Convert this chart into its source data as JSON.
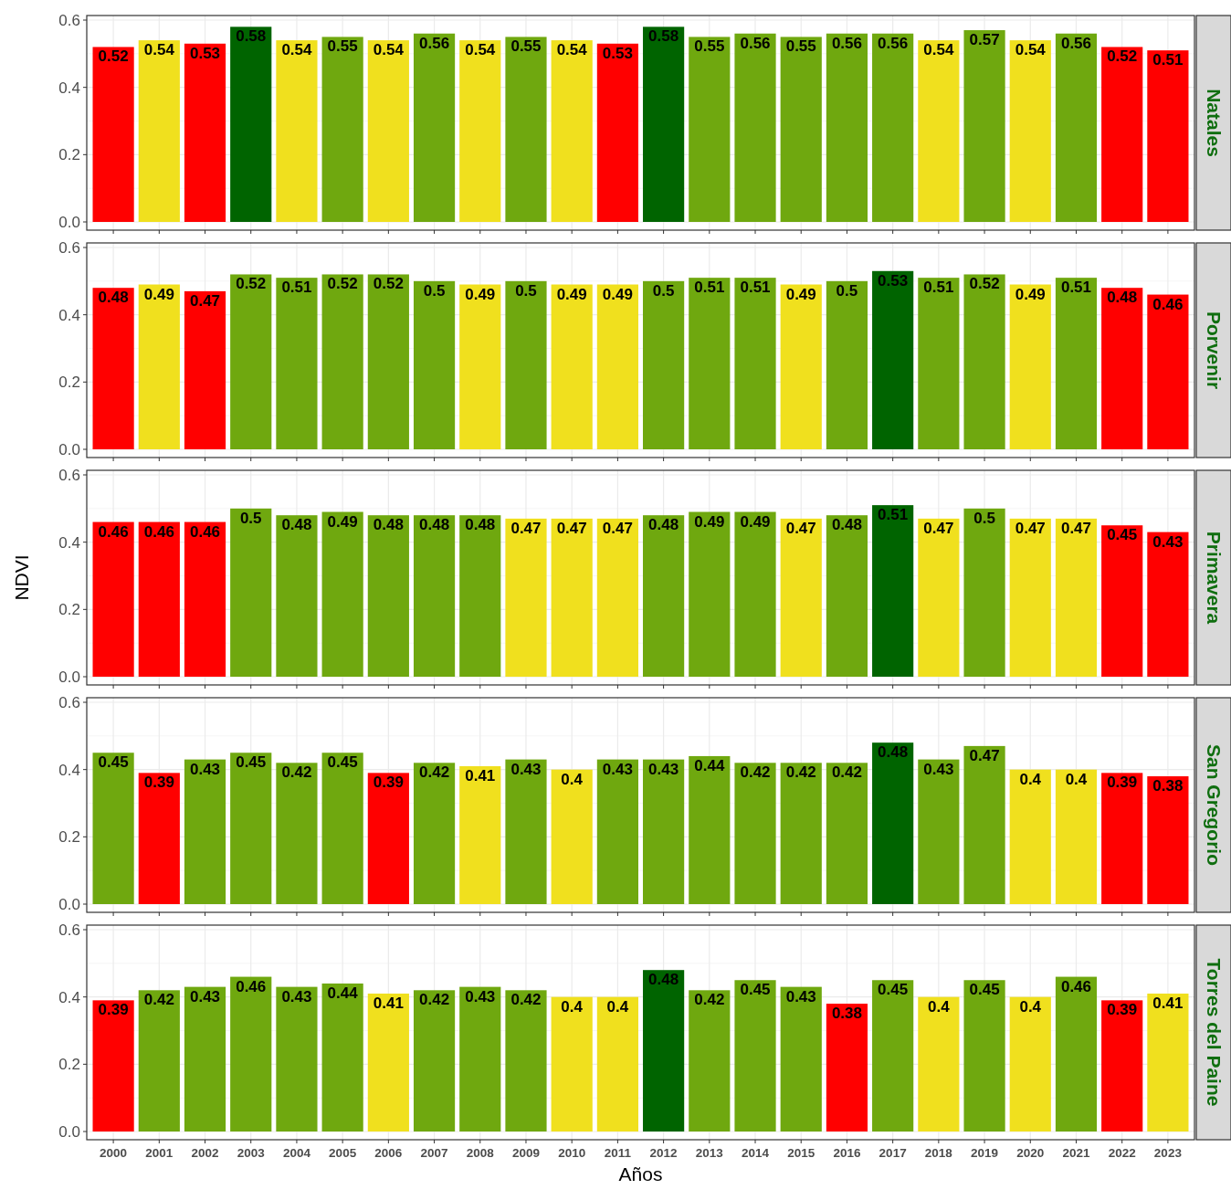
{
  "chart_data": [
    {
      "type": "bar",
      "title": "Natales",
      "categories": [
        "2000",
        "2001",
        "2002",
        "2003",
        "2004",
        "2005",
        "2006",
        "2007",
        "2008",
        "2009",
        "2010",
        "2011",
        "2012",
        "2013",
        "2014",
        "2015",
        "2016",
        "2017",
        "2018",
        "2019",
        "2020",
        "2021",
        "2022",
        "2023"
      ],
      "values": [
        0.52,
        0.54,
        0.53,
        0.58,
        0.54,
        0.55,
        0.54,
        0.56,
        0.54,
        0.55,
        0.54,
        0.53,
        0.58,
        0.55,
        0.56,
        0.55,
        0.56,
        0.56,
        0.54,
        0.57,
        0.54,
        0.56,
        0.52,
        0.51
      ],
      "colors": [
        "#ff0000",
        "#f0e01e",
        "#ff0000",
        "#006400",
        "#f0e01e",
        "#6fa80f",
        "#f0e01e",
        "#6fa80f",
        "#f0e01e",
        "#6fa80f",
        "#f0e01e",
        "#ff0000",
        "#006400",
        "#6fa80f",
        "#6fa80f",
        "#6fa80f",
        "#6fa80f",
        "#6fa80f",
        "#f0e01e",
        "#6fa80f",
        "#f0e01e",
        "#6fa80f",
        "#ff0000",
        "#ff0000"
      ],
      "ylim": [
        0,
        0.6
      ],
      "yticks": [
        {
          "value": 0,
          "label": "0.0"
        },
        {
          "value": 0.2,
          "label": "0.2"
        },
        {
          "value": 0.4,
          "label": "0.4"
        },
        {
          "value": 0.6,
          "label": "0.6"
        }
      ],
      "grid": true,
      "data_labels": true,
      "tick_labels": "y"
    },
    {
      "type": "bar",
      "title": "Porvenir",
      "categories": [
        "2000",
        "2001",
        "2002",
        "2003",
        "2004",
        "2005",
        "2006",
        "2007",
        "2008",
        "2009",
        "2010",
        "2011",
        "2012",
        "2013",
        "2014",
        "2015",
        "2016",
        "2017",
        "2018",
        "2019",
        "2020",
        "2021",
        "2022",
        "2023"
      ],
      "values": [
        0.48,
        0.49,
        0.47,
        0.52,
        0.51,
        0.52,
        0.52,
        0.5,
        0.49,
        0.5,
        0.49,
        0.49,
        0.5,
        0.51,
        0.51,
        0.49,
        0.5,
        0.53,
        0.51,
        0.52,
        0.49,
        0.51,
        0.48,
        0.46
      ],
      "colors": [
        "#ff0000",
        "#f0e01e",
        "#ff0000",
        "#6fa80f",
        "#6fa80f",
        "#6fa80f",
        "#6fa80f",
        "#6fa80f",
        "#f0e01e",
        "#6fa80f",
        "#f0e01e",
        "#f0e01e",
        "#6fa80f",
        "#6fa80f",
        "#6fa80f",
        "#f0e01e",
        "#6fa80f",
        "#006400",
        "#6fa80f",
        "#6fa80f",
        "#f0e01e",
        "#6fa80f",
        "#ff0000",
        "#ff0000"
      ],
      "ylim": [
        0,
        0.6
      ],
      "yticks": [
        {
          "value": 0,
          "label": "0.0"
        },
        {
          "value": 0.2,
          "label": "0.2"
        },
        {
          "value": 0.4,
          "label": "0.4"
        },
        {
          "value": 0.6,
          "label": "0.6"
        }
      ],
      "grid": true,
      "data_labels": true,
      "tick_labels": "y"
    },
    {
      "type": "bar",
      "title": "Primavera",
      "ylabel": "NDVI",
      "categories": [
        "2000",
        "2001",
        "2002",
        "2003",
        "2004",
        "2005",
        "2006",
        "2007",
        "2008",
        "2009",
        "2010",
        "2011",
        "2012",
        "2013",
        "2014",
        "2015",
        "2016",
        "2017",
        "2018",
        "2019",
        "2020",
        "2021",
        "2022",
        "2023"
      ],
      "values": [
        0.46,
        0.46,
        0.46,
        0.5,
        0.48,
        0.49,
        0.48,
        0.48,
        0.48,
        0.47,
        0.47,
        0.47,
        0.48,
        0.49,
        0.49,
        0.47,
        0.48,
        0.51,
        0.47,
        0.5,
        0.47,
        0.47,
        0.45,
        0.43
      ],
      "colors": [
        "#ff0000",
        "#ff0000",
        "#ff0000",
        "#6fa80f",
        "#6fa80f",
        "#6fa80f",
        "#6fa80f",
        "#6fa80f",
        "#6fa80f",
        "#f0e01e",
        "#f0e01e",
        "#f0e01e",
        "#6fa80f",
        "#6fa80f",
        "#6fa80f",
        "#f0e01e",
        "#6fa80f",
        "#006400",
        "#f0e01e",
        "#6fa80f",
        "#f0e01e",
        "#f0e01e",
        "#ff0000",
        "#ff0000"
      ],
      "ylim": [
        0,
        0.6
      ],
      "yticks": [
        {
          "value": 0,
          "label": "0.0"
        },
        {
          "value": 0.2,
          "label": "0.2"
        },
        {
          "value": 0.4,
          "label": "0.4"
        },
        {
          "value": 0.6,
          "label": "0.6"
        }
      ],
      "grid": true,
      "data_labels": true,
      "tick_labels": "y"
    },
    {
      "type": "bar",
      "title": "San Gregorio",
      "categories": [
        "2000",
        "2001",
        "2002",
        "2003",
        "2004",
        "2005",
        "2006",
        "2007",
        "2008",
        "2009",
        "2010",
        "2011",
        "2012",
        "2013",
        "2014",
        "2015",
        "2016",
        "2017",
        "2018",
        "2019",
        "2020",
        "2021",
        "2022",
        "2023"
      ],
      "values": [
        0.45,
        0.39,
        0.43,
        0.45,
        0.42,
        0.45,
        0.39,
        0.42,
        0.41,
        0.43,
        0.4,
        0.43,
        0.43,
        0.44,
        0.42,
        0.42,
        0.42,
        0.48,
        0.43,
        0.47,
        0.4,
        0.4,
        0.39,
        0.38
      ],
      "colors": [
        "#6fa80f",
        "#ff0000",
        "#6fa80f",
        "#6fa80f",
        "#6fa80f",
        "#6fa80f",
        "#ff0000",
        "#6fa80f",
        "#f0e01e",
        "#6fa80f",
        "#f0e01e",
        "#6fa80f",
        "#6fa80f",
        "#6fa80f",
        "#6fa80f",
        "#6fa80f",
        "#6fa80f",
        "#006400",
        "#6fa80f",
        "#6fa80f",
        "#f0e01e",
        "#f0e01e",
        "#ff0000",
        "#ff0000"
      ],
      "ylim": [
        0,
        0.6
      ],
      "yticks": [
        {
          "value": 0,
          "label": "0.0"
        },
        {
          "value": 0.2,
          "label": "0.2"
        },
        {
          "value": 0.4,
          "label": "0.4"
        },
        {
          "value": 0.6,
          "label": "0.6"
        }
      ],
      "grid": true,
      "data_labels": true,
      "tick_labels": "y"
    },
    {
      "type": "bar",
      "title": "Torres del Paine",
      "xlabel": "Años",
      "categories": [
        "2000",
        "2001",
        "2002",
        "2003",
        "2004",
        "2005",
        "2006",
        "2007",
        "2008",
        "2009",
        "2010",
        "2011",
        "2012",
        "2013",
        "2014",
        "2015",
        "2016",
        "2017",
        "2018",
        "2019",
        "2020",
        "2021",
        "2022",
        "2023"
      ],
      "values": [
        0.39,
        0.42,
        0.43,
        0.46,
        0.43,
        0.44,
        0.41,
        0.42,
        0.43,
        0.42,
        0.4,
        0.4,
        0.48,
        0.42,
        0.45,
        0.43,
        0.38,
        0.45,
        0.4,
        0.45,
        0.4,
        0.46,
        0.39,
        0.41
      ],
      "colors": [
        "#ff0000",
        "#6fa80f",
        "#6fa80f",
        "#6fa80f",
        "#6fa80f",
        "#6fa80f",
        "#f0e01e",
        "#6fa80f",
        "#6fa80f",
        "#6fa80f",
        "#f0e01e",
        "#f0e01e",
        "#006400",
        "#6fa80f",
        "#6fa80f",
        "#6fa80f",
        "#ff0000",
        "#6fa80f",
        "#f0e01e",
        "#6fa80f",
        "#f0e01e",
        "#6fa80f",
        "#ff0000",
        "#f0e01e"
      ],
      "ylim": [
        0,
        0.6
      ],
      "yticks": [
        {
          "value": 0,
          "label": "0.0"
        },
        {
          "value": 0.2,
          "label": "0.2"
        },
        {
          "value": 0.4,
          "label": "0.4"
        },
        {
          "value": 0.6,
          "label": "0.6"
        }
      ],
      "grid": true,
      "data_labels": true
    }
  ]
}
